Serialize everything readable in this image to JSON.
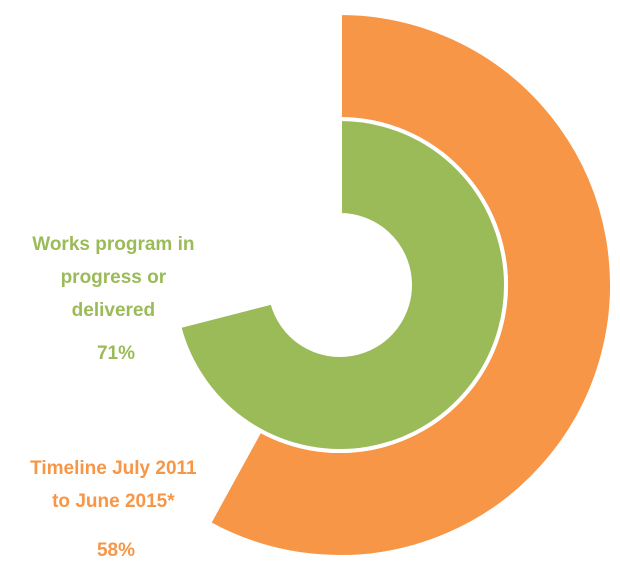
{
  "chart_data": {
    "type": "radial-bar",
    "start_angle_deg": 0,
    "direction": "clockwise",
    "series": [
      {
        "label_lines": [
          "Timeline July 2011",
          "to June 2015*"
        ],
        "value_label": "58%",
        "value": 58,
        "color": "#F79646"
      },
      {
        "label_lines": [
          "Works program in",
          "progress or",
          "delivered"
        ],
        "value_label": "71%",
        "value": 71,
        "color": "#9BBB59"
      }
    ]
  }
}
